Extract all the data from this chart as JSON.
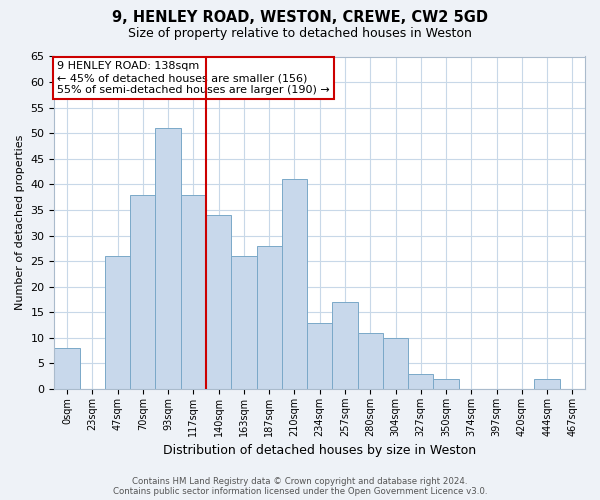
{
  "title": "9, HENLEY ROAD, WESTON, CREWE, CW2 5GD",
  "subtitle": "Size of property relative to detached houses in Weston",
  "xlabel": "Distribution of detached houses by size in Weston",
  "ylabel": "Number of detached properties",
  "bar_color": "#c8d8eb",
  "bar_edge_color": "#7aa8c8",
  "bin_labels": [
    "0sqm",
    "23sqm",
    "47sqm",
    "70sqm",
    "93sqm",
    "117sqm",
    "140sqm",
    "163sqm",
    "187sqm",
    "210sqm",
    "234sqm",
    "257sqm",
    "280sqm",
    "304sqm",
    "327sqm",
    "350sqm",
    "374sqm",
    "397sqm",
    "420sqm",
    "444sqm",
    "467sqm"
  ],
  "bar_heights": [
    8,
    0,
    26,
    38,
    51,
    38,
    34,
    26,
    28,
    41,
    13,
    17,
    11,
    10,
    3,
    2,
    0,
    0,
    0,
    2,
    0
  ],
  "ylim": [
    0,
    65
  ],
  "yticks": [
    0,
    5,
    10,
    15,
    20,
    25,
    30,
    35,
    40,
    45,
    50,
    55,
    60,
    65
  ],
  "vline_x_label": "140sqm",
  "vline_color": "#cc0000",
  "annotation_title": "9 HENLEY ROAD: 138sqm",
  "annotation_line1": "← 45% of detached houses are smaller (156)",
  "annotation_line2": "55% of semi-detached houses are larger (190) →",
  "footer1": "Contains HM Land Registry data © Crown copyright and database right 2024.",
  "footer2": "Contains public sector information licensed under the Open Government Licence v3.0.",
  "bg_color": "#eef2f7",
  "plot_bg_color": "#ffffff",
  "grid_color": "#c8d8e8"
}
